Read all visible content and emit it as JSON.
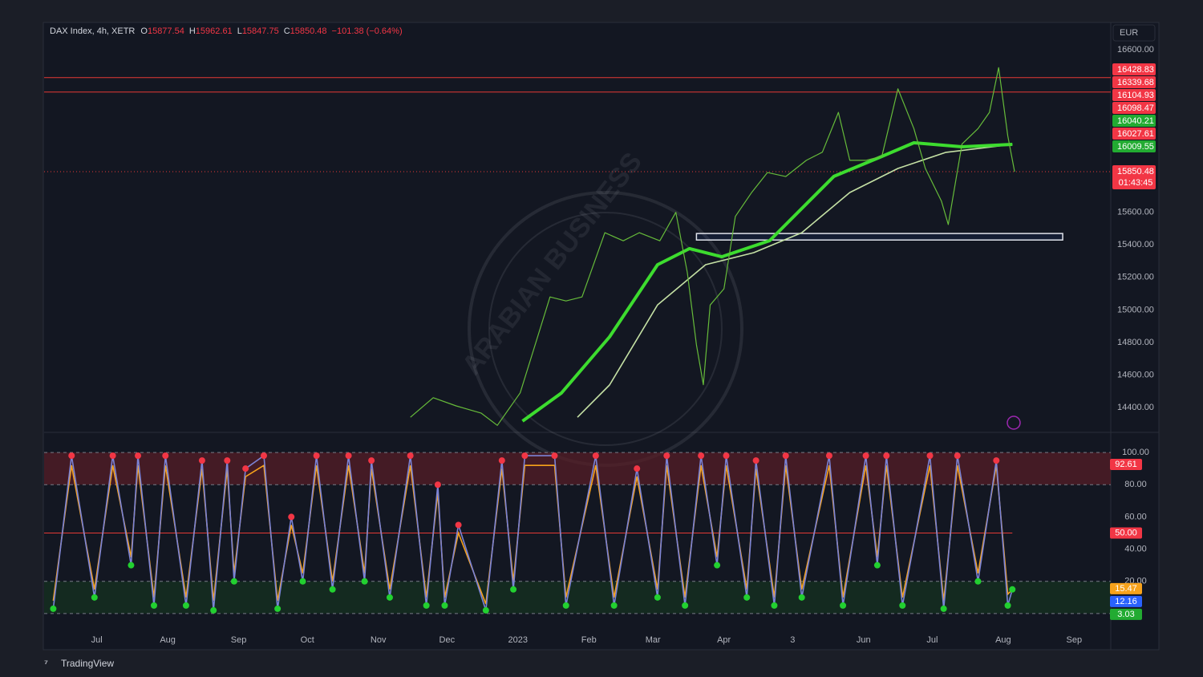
{
  "chart_data": [
    {
      "type": "line",
      "title": "DAX Index, 4h, XETR",
      "ohlc": [
        {
          "label": "O",
          "value": 15877.54
        },
        {
          "label": "H",
          "value": 15962.61
        },
        {
          "label": "L",
          "value": 15847.75
        },
        {
          "label": "C",
          "value": 15850.48
        }
      ],
      "change": "−101.38 (−0.64%)",
      "currency": "EUR",
      "watermark": "ARABIAN BUSINESS",
      "xlim": [
        7,
        473
      ],
      "ylim": [
        14252,
        16758
      ],
      "yticks": [
        {
          "value": 14400,
          "label": "14400.00"
        },
        {
          "value": 14600,
          "label": "14600.00"
        },
        {
          "value": 14800,
          "label": "14800.00"
        },
        {
          "value": 15000,
          "label": "15000.00"
        },
        {
          "value": 15200,
          "label": "15200.00"
        },
        {
          "value": 15400,
          "label": "15400.00"
        },
        {
          "value": 15600,
          "label": "15600.00"
        },
        {
          "value": 16600,
          "label": "16600.00"
        }
      ],
      "grid": false,
      "series": [
        {
          "color": "#66bb3a",
          "width": 1.2,
          "x": [
            167,
            177,
            187,
            198,
            205,
            215,
            228,
            235,
            242,
            252,
            260,
            267,
            276,
            283,
            288,
            292,
            295,
            298,
            304,
            309,
            316,
            323,
            331,
            340,
            347,
            354,
            359,
            366,
            373,
            380,
            387,
            392,
            399,
            402,
            408,
            415,
            420,
            424,
            428,
            431
          ],
          "values": [
            14340,
            14460,
            14410,
            14365,
            14290,
            14490,
            15080,
            15055,
            15080,
            15475,
            15425,
            15475,
            15425,
            15600,
            15230,
            14785,
            14540,
            15030,
            15130,
            15575,
            15720,
            15845,
            15820,
            15920,
            15970,
            16215,
            15920,
            15920,
            15945,
            16360,
            16115,
            15870,
            15670,
            15525,
            16020,
            16115,
            16215,
            16490,
            16070,
            15850
          ]
        },
        {
          "color": "#3ddc2f",
          "width": 4,
          "x": [
            216,
            233,
            254,
            275,
            289,
            303,
            324,
            352,
            373,
            387,
            408,
            430
          ],
          "values": [
            14316,
            14489,
            14834,
            15278,
            15377,
            15327,
            15426,
            15821,
            15944,
            16028,
            16003,
            16018
          ]
        },
        {
          "color": "#c5e1a5",
          "width": 1.6,
          "x": [
            240,
            254,
            275,
            296,
            317,
            338,
            359,
            380,
            401,
            430
          ],
          "values": [
            14340,
            14538,
            15031,
            15278,
            15352,
            15475,
            15722,
            15870,
            15969,
            16018
          ]
        }
      ],
      "hlines": [
        {
          "value": 16428.83,
          "color": "#e53935"
        },
        {
          "value": 16339.68,
          "color": "#e53935"
        }
      ],
      "last_line": {
        "value": 15850.48,
        "color": "#e53935"
      },
      "zone": {
        "xlim": [
          292,
          452
        ],
        "ylim": [
          15430,
          15470
        ]
      },
      "price_labels": [
        {
          "value": 16428.83,
          "color": "#f23645"
        },
        {
          "value": 16339.68,
          "color": "#f23645"
        },
        {
          "value": 16104.93,
          "color": "#f23645"
        },
        {
          "value": 16098.47,
          "color": "#f23645"
        },
        {
          "value": 16040.21,
          "color": "#22ab32"
        },
        {
          "value": 16027.61,
          "color": "#f23645"
        },
        {
          "value": 16009.55,
          "color": "#22ab32"
        },
        {
          "value": 15850.48,
          "color": "#f23645"
        }
      ],
      "countdown": "01:43:45"
    },
    {
      "type": "line",
      "xlim": [
        7,
        473
      ],
      "xticks": [
        {
          "value": 30,
          "label": "Jul"
        },
        {
          "value": 61,
          "label": "Aug"
        },
        {
          "value": 92,
          "label": "Sep"
        },
        {
          "value": 122,
          "label": "Oct"
        },
        {
          "value": 153,
          "label": "Nov"
        },
        {
          "value": 183,
          "label": "Dec"
        },
        {
          "value": 214,
          "label": "2023"
        },
        {
          "value": 245,
          "label": "Feb"
        },
        {
          "value": 273,
          "label": "Mar"
        },
        {
          "value": 304,
          "label": "Apr"
        },
        {
          "value": 334,
          "label": "3"
        },
        {
          "value": 365,
          "label": "Jun"
        },
        {
          "value": 395,
          "label": "Jul"
        },
        {
          "value": 426,
          "label": "Aug"
        },
        {
          "value": 457,
          "label": "Sep"
        }
      ],
      "ylim": [
        -10,
        112
      ],
      "yticks": [
        {
          "value": 100,
          "label": "100.00"
        },
        {
          "value": 80,
          "label": "80.00"
        },
        {
          "value": 60,
          "label": "60.00"
        },
        {
          "value": 40,
          "label": "40.00"
        },
        {
          "value": 20,
          "label": "20.00"
        }
      ],
      "bands": [
        {
          "from": 80,
          "to": 100,
          "color": "#5a1e26"
        },
        {
          "from": 0,
          "to": 20,
          "color": "#16331f"
        }
      ],
      "hlines": [
        100,
        80,
        20,
        0
      ],
      "midline": 50,
      "x": [
        11,
        19,
        29,
        37,
        45,
        48,
        55,
        60,
        69,
        76,
        81,
        87,
        90,
        95,
        103,
        109,
        115,
        120,
        126,
        133,
        140,
        147,
        150,
        158,
        167,
        174,
        179,
        182,
        188,
        200,
        207,
        212,
        217,
        230,
        235,
        248,
        256,
        266,
        275,
        279,
        287,
        294,
        301,
        305,
        314,
        318,
        326,
        331,
        338,
        350,
        356,
        366,
        371,
        375,
        382,
        394,
        400,
        406,
        415,
        423,
        428,
        430
      ],
      "series": [
        {
          "color": "#7b83d6",
          "values": [
            3,
            98,
            10,
            98,
            30,
            98,
            5,
            98,
            5,
            95,
            2,
            95,
            20,
            90,
            98,
            3,
            60,
            20,
            98,
            15,
            98,
            20,
            95,
            10,
            98,
            5,
            80,
            5,
            55,
            2,
            95,
            15,
            98,
            98,
            5,
            98,
            5,
            90,
            10,
            98,
            5,
            98,
            30,
            98,
            10,
            95,
            5,
            98,
            10,
            98,
            5,
            98,
            30,
            98,
            5,
            98,
            3,
            98,
            20,
            95,
            5,
            15
          ]
        },
        {
          "color": "#f7a21b",
          "values": [
            8,
            92,
            15,
            92,
            35,
            92,
            10,
            92,
            10,
            90,
            8,
            90,
            25,
            85,
            92,
            8,
            55,
            25,
            92,
            20,
            92,
            25,
            90,
            15,
            92,
            10,
            75,
            10,
            50,
            6,
            90,
            20,
            92,
            92,
            10,
            92,
            10,
            85,
            15,
            92,
            10,
            92,
            35,
            92,
            15,
            90,
            10,
            92,
            15,
            92,
            10,
            92,
            35,
            92,
            10,
            92,
            8,
            92,
            25,
            92,
            12,
            15
          ]
        }
      ],
      "value_labels": [
        {
          "value": 92.61,
          "color": "#f23645"
        },
        {
          "value": 50,
          "label": "50.00",
          "color": "#f23645"
        },
        {
          "value": 15.47,
          "color": "#f7a21b"
        },
        {
          "value": 12.16,
          "color": "#2962ff"
        },
        {
          "value": 3.03,
          "color": "#22ab32"
        }
      ]
    }
  ],
  "brand": "TradingView"
}
